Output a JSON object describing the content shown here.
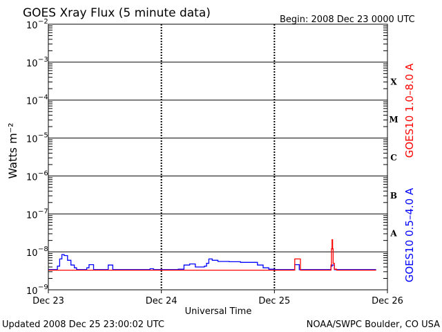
{
  "header": {
    "title": "GOES Xray Flux (5 minute data)",
    "begin": "Begin:  2008 Dec 23 0000 UTC"
  },
  "footer": {
    "updated": "Updated 2008 Dec 25 23:00:02 UTC",
    "credit": "NOAA/SWPC Boulder, CO USA"
  },
  "chart_data": {
    "type": "line",
    "title": "GOES Xray Flux (5 minute data)",
    "xlabel": "Universal Time",
    "ylabel": "Watts m⁻²",
    "yscale": "log",
    "ylim": [
      1e-09,
      0.01
    ],
    "y_ticks": [
      {
        "value": 0.01,
        "base": "10",
        "exp": "−2"
      },
      {
        "value": 0.001,
        "base": "10",
        "exp": "−3"
      },
      {
        "value": 0.0001,
        "base": "10",
        "exp": "−4"
      },
      {
        "value": 1e-05,
        "base": "10",
        "exp": "−5"
      },
      {
        "value": 1e-06,
        "base": "10",
        "exp": "−6"
      },
      {
        "value": 1e-07,
        "base": "10",
        "exp": "−7"
      },
      {
        "value": 1e-08,
        "base": "10",
        "exp": "−8"
      },
      {
        "value": 1e-09,
        "base": "10",
        "exp": "−9"
      }
    ],
    "x_unit": "days since 2008 Dec 23 0000 UTC",
    "xlim": [
      0,
      3
    ],
    "x_ticks": [
      {
        "value": 0,
        "label": "Dec 23"
      },
      {
        "value": 1,
        "label": "Dec 24"
      },
      {
        "value": 2,
        "label": "Dec 25"
      },
      {
        "value": 3,
        "label": "Dec 26"
      }
    ],
    "flare_classes": [
      {
        "label": "X",
        "value": 0.000316
      },
      {
        "label": "M",
        "value": 3.16e-05
      },
      {
        "label": "C",
        "value": 3.16e-06
      },
      {
        "label": "B",
        "value": 3.16e-07
      },
      {
        "label": "A",
        "value": 3.16e-08
      }
    ],
    "grid": true,
    "series": [
      {
        "name": "GOES10 1.0–8.0 A",
        "color": "#ff0000",
        "x": [
          0,
          0.5,
          1.0,
          1.5,
          1.9,
          2.0,
          2.16,
          2.18,
          2.19,
          2.21,
          2.23,
          2.4,
          2.48,
          2.5,
          2.505,
          2.51,
          2.515,
          2.52,
          2.53,
          2.55,
          2.7,
          2.9
        ],
        "y": [
          3.3e-09,
          3.3e-09,
          3.3e-09,
          3.3e-09,
          3.3e-09,
          3.3e-09,
          3.3e-09,
          6.5e-09,
          6.5e-09,
          6.5e-09,
          3.3e-09,
          3.3e-09,
          3.3e-09,
          4.5e-09,
          1.2e-08,
          2.1e-08,
          1.2e-08,
          5e-09,
          3.5e-09,
          3.3e-09,
          3.3e-09,
          3.3e-09
        ]
      },
      {
        "name": "GOES10 0.5–4.0 A",
        "color": "#0000ff",
        "x": [
          0,
          0.05,
          0.08,
          0.1,
          0.12,
          0.14,
          0.17,
          0.2,
          0.23,
          0.25,
          0.3,
          0.34,
          0.36,
          0.38,
          0.4,
          0.5,
          0.53,
          0.55,
          0.57,
          0.6,
          0.85,
          0.9,
          0.93,
          1.0,
          1.1,
          1.15,
          1.2,
          1.25,
          1.3,
          1.38,
          1.4,
          1.42,
          1.45,
          1.5,
          1.6,
          1.7,
          1.8,
          1.85,
          1.9,
          1.95,
          2.0,
          2.16,
          2.18,
          2.2,
          2.22,
          2.48,
          2.5,
          2.51,
          2.53,
          2.9
        ],
        "y": [
          3.4e-09,
          3.4e-09,
          4.2e-09,
          6.5e-09,
          8.5e-09,
          8e-09,
          6e-09,
          4.5e-09,
          3.8e-09,
          3.4e-09,
          3.4e-09,
          3.8e-09,
          4.6e-09,
          4.6e-09,
          3.4e-09,
          3.4e-09,
          4.5e-09,
          4.5e-09,
          3.4e-09,
          3.4e-09,
          3.4e-09,
          3.6e-09,
          3.4e-09,
          3.4e-09,
          3.4e-09,
          3.5e-09,
          4.5e-09,
          4.8e-09,
          4e-09,
          4.2e-09,
          5e-09,
          6.5e-09,
          6e-09,
          5.6e-09,
          5.5e-09,
          5.3e-09,
          5.3e-09,
          4.5e-09,
          3.8e-09,
          3.5e-09,
          3.4e-09,
          3.4e-09,
          4.6e-09,
          4.6e-09,
          3.4e-09,
          3.4e-09,
          4.2e-09,
          4.5e-09,
          3.4e-09,
          3.4e-09
        ]
      }
    ]
  }
}
